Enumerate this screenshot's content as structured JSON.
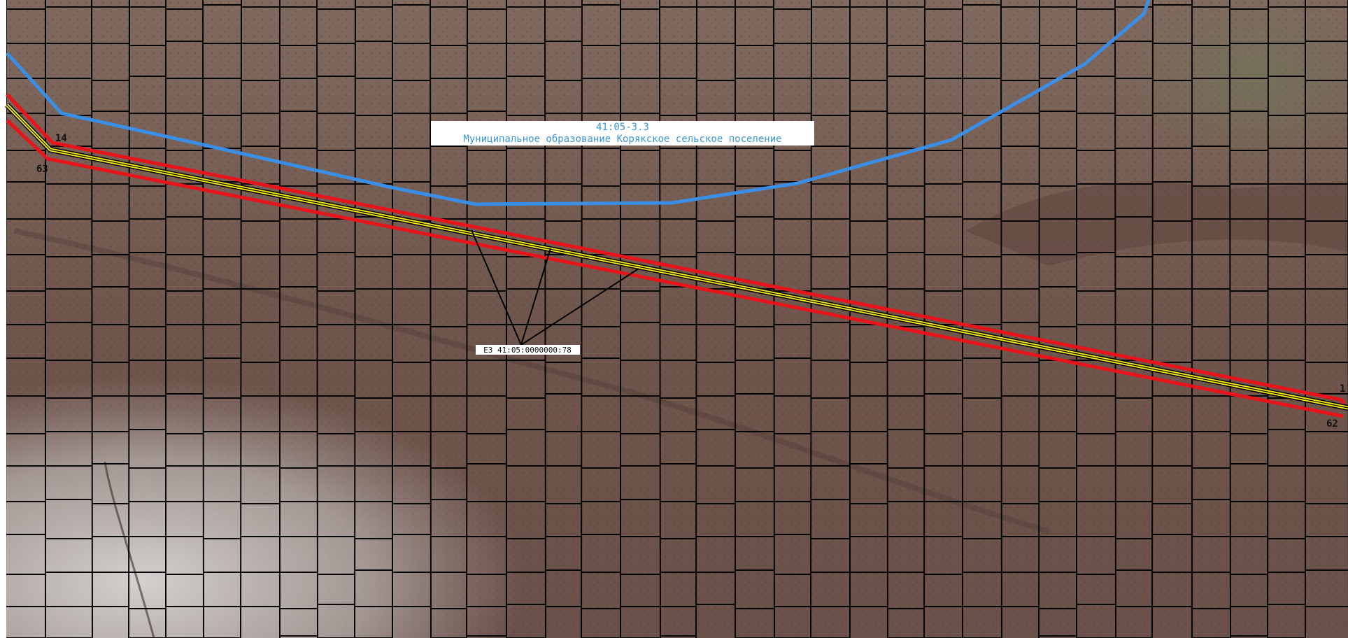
{
  "map": {
    "zone_boundary": {
      "code": "41:05-3.3",
      "name": "Муниципальное образование Корякское сельское поселение",
      "color": "#3a8ee6"
    },
    "parcel": {
      "label": "ЕЗ 41:05:0000000:78",
      "color": "#000000"
    },
    "corridor": {
      "outer_color": "#e8141b",
      "inner_color": "#f2ea18"
    },
    "points": [
      {
        "id": "14"
      },
      {
        "id": "63"
      },
      {
        "id": "1"
      },
      {
        "id": "62"
      }
    ],
    "colors": {
      "terrain_dark": "#6b5148",
      "terrain_mid": "#7d6459",
      "snow": "#d8d6d4",
      "grid": "#000000"
    }
  }
}
